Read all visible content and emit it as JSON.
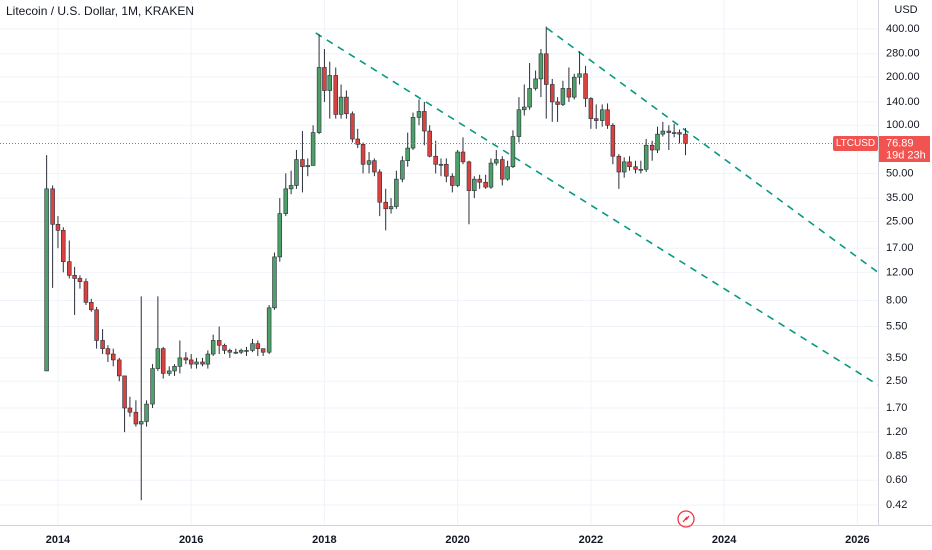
{
  "chart_data": {
    "type": "candlestick",
    "title": "Litecoin / U.S. Dollar, 1M, KRAKEN",
    "y_unit": "USD",
    "log_scale": true,
    "grid": true,
    "countdown": "19d 23h",
    "xlim": [
      2013.13,
      2026.31
    ],
    "xticks": [
      2014,
      2016,
      2018,
      2020,
      2022,
      2024,
      2026
    ],
    "ylim": [
      0.315,
      608
    ],
    "yticks": [
      {
        "value": 400,
        "label": "400.00"
      },
      {
        "value": 280,
        "label": "280.00"
      },
      {
        "value": 200,
        "label": "200.00"
      },
      {
        "value": 140,
        "label": "140.00"
      },
      {
        "value": 100,
        "label": "100.00"
      },
      {
        "value": 50,
        "label": "50.00"
      },
      {
        "value": 35,
        "label": "35.00"
      },
      {
        "value": 25,
        "label": "25.00"
      },
      {
        "value": 17,
        "label": "17.00"
      },
      {
        "value": 12,
        "label": "12.00"
      },
      {
        "value": 8,
        "label": "8.00"
      },
      {
        "value": 5.5,
        "label": "5.50"
      },
      {
        "value": 3.5,
        "label": "3.50"
      },
      {
        "value": 2.5,
        "label": "2.50"
      },
      {
        "value": 1.7,
        "label": "1.70"
      },
      {
        "value": 1.2,
        "label": "1.20"
      },
      {
        "value": 0.85,
        "label": "0.85"
      },
      {
        "value": 0.6,
        "label": "0.60"
      },
      {
        "value": 0.42,
        "label": "0.42"
      }
    ],
    "trendlines": [
      {
        "color": "#089981",
        "x": [
          2017.87,
          2026.31
        ],
        "y": [
          378,
          2.37
        ]
      },
      {
        "color": "#089981",
        "x": [
          2021.34,
          2026.31
        ],
        "y": [
          405,
          12
        ]
      }
    ],
    "series": [
      {
        "name": "LTCUSD",
        "up_color": "#4e9f68",
        "down_color": "#d8433f",
        "last_color": "#f05350",
        "x": [
          2013.83,
          2013.92,
          2014.0,
          2014.08,
          2014.17,
          2014.25,
          2014.33,
          2014.42,
          2014.5,
          2014.58,
          2014.67,
          2014.75,
          2014.83,
          2014.92,
          2015.0,
          2015.08,
          2015.17,
          2015.25,
          2015.33,
          2015.42,
          2015.5,
          2015.58,
          2015.67,
          2015.75,
          2015.83,
          2015.92,
          2016.0,
          2016.08,
          2016.17,
          2016.25,
          2016.33,
          2016.42,
          2016.5,
          2016.58,
          2016.67,
          2016.75,
          2016.83,
          2016.92,
          2017.0,
          2017.08,
          2017.17,
          2017.25,
          2017.33,
          2017.42,
          2017.5,
          2017.58,
          2017.67,
          2017.75,
          2017.83,
          2017.92,
          2018.0,
          2018.08,
          2018.17,
          2018.25,
          2018.33,
          2018.42,
          2018.5,
          2018.58,
          2018.67,
          2018.75,
          2018.83,
          2018.92,
          2019.0,
          2019.08,
          2019.17,
          2019.25,
          2019.33,
          2019.42,
          2019.5,
          2019.58,
          2019.67,
          2019.75,
          2019.83,
          2019.92,
          2020.0,
          2020.08,
          2020.17,
          2020.25,
          2020.33,
          2020.42,
          2020.5,
          2020.58,
          2020.67,
          2020.75,
          2020.83,
          2020.92,
          2021.0,
          2021.08,
          2021.17,
          2021.25,
          2021.33,
          2021.42,
          2021.5,
          2021.58,
          2021.67,
          2021.75,
          2021.83,
          2021.92,
          2022.0,
          2022.08,
          2022.17,
          2022.25,
          2022.33,
          2022.42,
          2022.5,
          2022.58,
          2022.67,
          2022.75,
          2022.83,
          2022.92,
          2023.0,
          2023.08,
          2023.17,
          2023.25,
          2023.33,
          2023.42
        ],
        "open": [
          2.9,
          40,
          24,
          22,
          14,
          11.5,
          11,
          10.5,
          7.8,
          7,
          4.5,
          4,
          3.7,
          3.4,
          2.7,
          1.7,
          1.6,
          1.35,
          1.4,
          1.8,
          3.0,
          4.0,
          2.8,
          2.9,
          3.1,
          3.5,
          3.4,
          3.2,
          3.3,
          3.2,
          3.7,
          4.5,
          4.2,
          3.9,
          3.8,
          3.8,
          3.9,
          3.9,
          4.3,
          4.0,
          3.8,
          7.2,
          15,
          28,
          40,
          42,
          61,
          55,
          56,
          90,
          230,
          165,
          205,
          117,
          150,
          118,
          82,
          76,
          57,
          60,
          51,
          33,
          30,
          31,
          46,
          60,
          72,
          112,
          122,
          92,
          64,
          57,
          57,
          48,
          42,
          68,
          59,
          39,
          46,
          44,
          41,
          58,
          61,
          46,
          55,
          85,
          125,
          130,
          170,
          195,
          280,
          180,
          140,
          135,
          170,
          150,
          200,
          210,
          147,
          110,
          107,
          125,
          100,
          64,
          51,
          59,
          55,
          53,
          53,
          75,
          70,
          88,
          92,
          90,
          90,
          88
        ],
        "high": [
          65,
          42,
          27,
          23,
          19,
          13,
          11.5,
          11,
          8.2,
          7.3,
          5.3,
          4.2,
          4,
          3.5,
          2.7,
          2,
          1.9,
          8.5,
          1.9,
          3.2,
          8.5,
          4.1,
          3.1,
          3.2,
          4.5,
          3.8,
          3.7,
          3.5,
          3.5,
          3.9,
          4.9,
          5.5,
          4.3,
          4.0,
          4.0,
          4.0,
          4.1,
          4.6,
          4.5,
          4.0,
          7.5,
          16,
          35,
          50,
          52,
          70,
          92,
          62,
          100,
          370,
          300,
          250,
          230,
          180,
          165,
          122,
          95,
          78,
          68,
          62,
          53,
          40,
          35,
          52,
          64,
          90,
          120,
          145,
          140,
          100,
          80,
          62,
          62,
          50,
          70,
          84,
          60,
          48,
          49,
          49,
          62,
          70,
          64,
          60,
          93,
          150,
          180,
          245,
          220,
          300,
          415,
          195,
          150,
          190,
          230,
          210,
          290,
          235,
          150,
          135,
          135,
          137,
          103,
          66,
          63,
          64,
          60,
          60,
          82,
          80,
          98,
          105,
          100,
          102,
          94,
          96
        ],
        "low": [
          2.9,
          9.6,
          17,
          12,
          11,
          6.5,
          9.5,
          7.5,
          6.8,
          4,
          3.7,
          3.3,
          3.1,
          2.5,
          1.2,
          1.5,
          1.3,
          0.45,
          1.3,
          1.7,
          2.9,
          2.6,
          2.7,
          2.7,
          2.8,
          3.2,
          3.0,
          3.0,
          3.1,
          3.0,
          3.6,
          3.7,
          3.7,
          3.5,
          3.7,
          3.7,
          3.6,
          3.8,
          3.6,
          3.6,
          3.7,
          7,
          14,
          27,
          37,
          40,
          38,
          48,
          56,
          88,
          140,
          110,
          110,
          110,
          110,
          78,
          72,
          50,
          50,
          48,
          27,
          22,
          28,
          30,
          44,
          55,
          70,
          100,
          75,
          63,
          50,
          48,
          44,
          38,
          41,
          57,
          24,
          35,
          40,
          40,
          40,
          56,
          42,
          45,
          54,
          78,
          115,
          125,
          165,
          150,
          110,
          105,
          105,
          132,
          140,
          145,
          180,
          130,
          95,
          95,
          98,
          95,
          57,
          40,
          47,
          52,
          50,
          50,
          51,
          60,
          67,
          85,
          70,
          84,
          77,
          65
        ],
        "close": [
          40,
          24,
          22,
          14,
          11.5,
          11,
          10.5,
          7.8,
          7,
          4.5,
          4,
          3.7,
          3.4,
          2.7,
          1.7,
          1.6,
          1.35,
          1.4,
          1.8,
          3.0,
          4.0,
          2.8,
          2.9,
          3.1,
          3.5,
          3.4,
          3.2,
          3.3,
          3.2,
          3.7,
          4.5,
          4.2,
          3.9,
          3.8,
          3.8,
          3.9,
          3.9,
          4.3,
          4.0,
          3.8,
          7.2,
          15,
          28,
          40,
          42,
          61,
          55,
          56,
          90,
          230,
          165,
          205,
          117,
          150,
          118,
          82,
          76,
          57,
          60,
          51,
          33,
          30,
          31,
          46,
          60,
          72,
          112,
          122,
          92,
          64,
          57,
          57,
          48,
          42,
          68,
          59,
          39,
          46,
          44,
          41,
          58,
          61,
          46,
          55,
          85,
          125,
          130,
          170,
          195,
          280,
          180,
          140,
          135,
          170,
          150,
          200,
          210,
          147,
          110,
          107,
          125,
          100,
          64,
          51,
          59,
          55,
          53,
          53,
          75,
          70,
          88,
          92,
          90,
          90,
          88,
          76.89
        ]
      }
    ]
  }
}
